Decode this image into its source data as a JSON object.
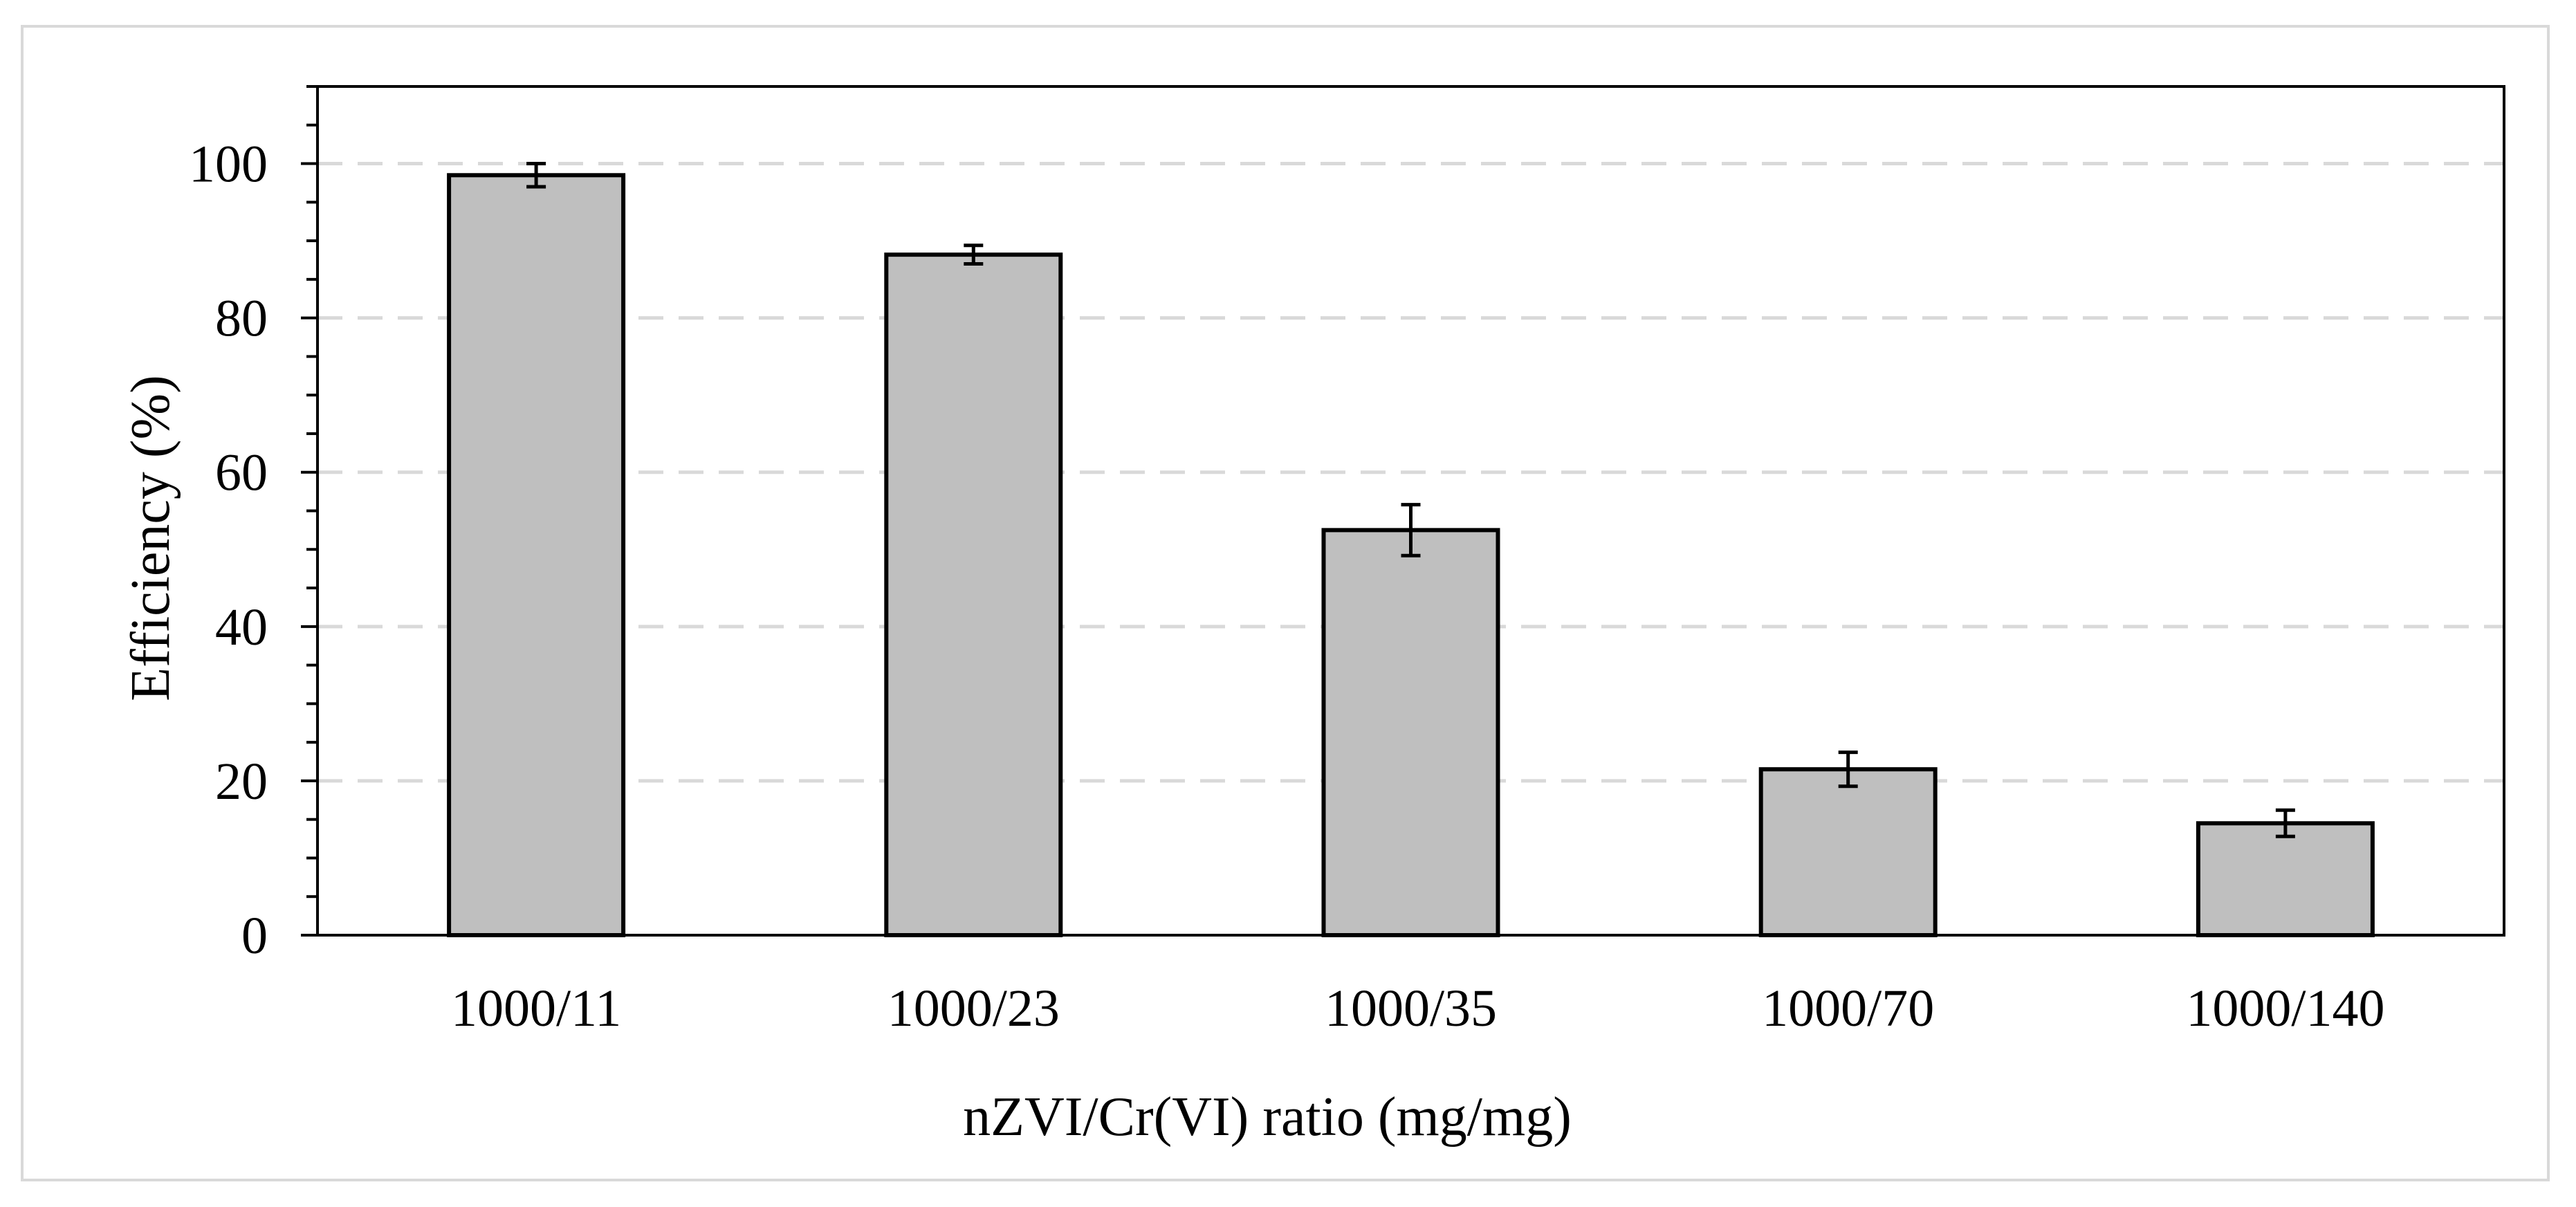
{
  "chart_data": {
    "type": "bar",
    "title": "",
    "xlabel": "nZVI/Cr(VI)  ratio (mg/mg)",
    "ylabel": "Efficiency (%)",
    "categories": [
      "1000/11",
      "1000/23",
      "1000/35",
      "1000/70",
      "1000/140"
    ],
    "values": [
      98.5,
      88.2,
      52.5,
      21.5,
      14.5
    ],
    "errors": [
      1.5,
      1.2,
      3.3,
      2.2,
      1.7
    ],
    "ylim": [
      0,
      110
    ],
    "yticks": [
      0,
      20,
      40,
      60,
      80,
      100
    ],
    "grid": true,
    "legend": "none",
    "colors": {
      "bar_fill": "#bfbfbf",
      "bar_stroke": "#000000",
      "grid": "#d9d9d9",
      "axis": "#000000",
      "frame": "#d9d9d9"
    }
  }
}
